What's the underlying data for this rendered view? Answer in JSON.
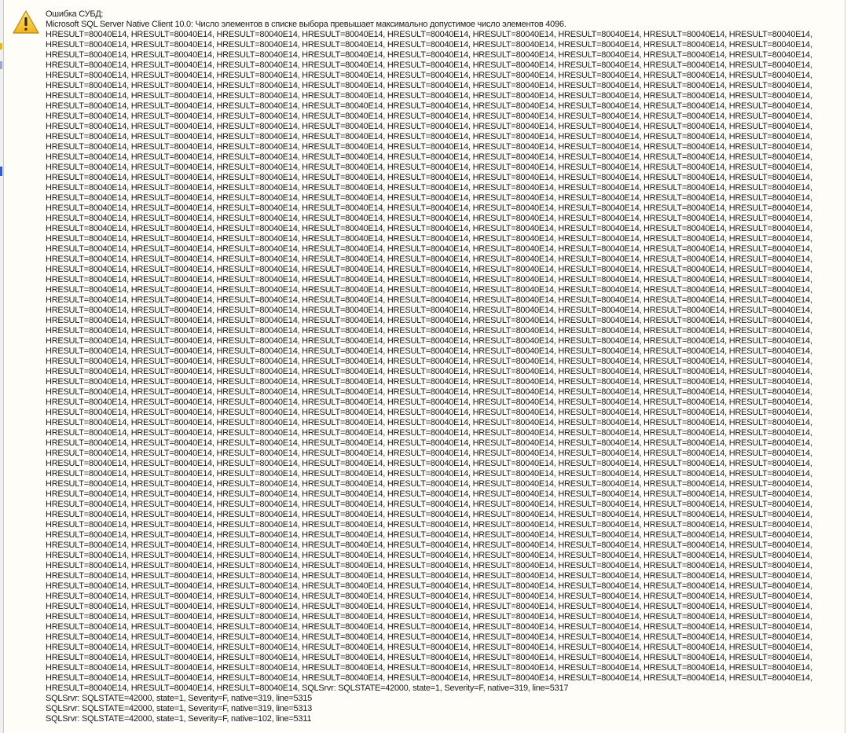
{
  "dialog": {
    "icon": "warning-icon",
    "accent": "#f3c43b",
    "title": "Ошибка СУБД:",
    "message": "Microsoft SQL Server Native Client 10.0: Число элементов в списке выбора превышает максимально допустимое число элементов 4096.",
    "hresult_line": "HRESULT=80040E14, HRESULT=80040E14, HRESULT=80040E14, HRESULT=80040E14, HRESULT=80040E14, HRESULT=80040E14, HRESULT=80040E14, HRESULT=80040E14, HRESULT=80040E14,",
    "hresult_line_count": 64,
    "last_hresult_line": "HRESULT=80040E14, HRESULT=80040E14, HRESULT=80040E14, SQLSrvr: SQLSTATE=42000, state=1, Severity=F, native=319, line=5317",
    "sqlsrvr_lines": [
      "SQLSrvr: SQLSTATE=42000, state=1, Severity=F, native=319, line=5315",
      "SQLSrvr: SQLSTATE=42000, state=1, Severity=F, native=319, line=5313",
      "SQLSrvr: SQLSTATE=42000, state=1, Severity=F, native=102, line=5311"
    ]
  }
}
